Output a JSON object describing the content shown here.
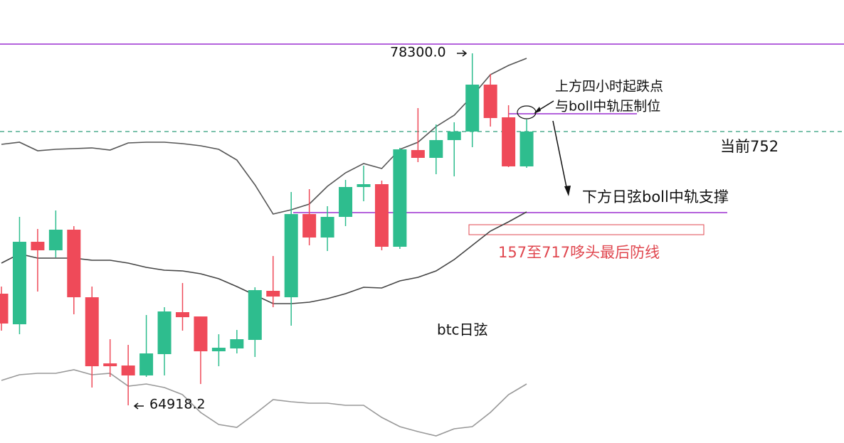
{
  "chart_data": {
    "type": "candlestick",
    "ylim": [
      63486,
      80328
    ],
    "candles": [
      {
        "open": 69163,
        "close": 68028,
        "high": 69433,
        "low": 67757
      },
      {
        "open": 68000,
        "close": 71136,
        "high": 72082,
        "low": 67621
      },
      {
        "open": 71136,
        "close": 70812,
        "high": 71623,
        "low": 69244
      },
      {
        "open": 70812,
        "close": 71596,
        "high": 72326,
        "low": 70541
      },
      {
        "open": 71596,
        "close": 69027,
        "high": 71731,
        "low": 68379
      },
      {
        "open": 69027,
        "close": 66405,
        "high": 69433,
        "low": 65594
      },
      {
        "open": 66513,
        "close": 66405,
        "high": 67432,
        "low": 66000
      },
      {
        "open": 66432,
        "close": 66054,
        "high": 67216,
        "low": 64918
      },
      {
        "open": 66054,
        "close": 66892,
        "high": 68352,
        "low": 66000
      },
      {
        "open": 66865,
        "close": 68487,
        "high": 68649,
        "low": 66054
      },
      {
        "open": 68460,
        "close": 68270,
        "high": 69568,
        "low": 67757
      },
      {
        "open": 68297,
        "close": 66973,
        "high": 68297,
        "low": 65729
      },
      {
        "open": 66973,
        "close": 67108,
        "high": 67621,
        "low": 66405
      },
      {
        "open": 67081,
        "close": 67432,
        "high": 67784,
        "low": 66892
      },
      {
        "open": 67406,
        "close": 69298,
        "high": 69406,
        "low": 66757
      },
      {
        "open": 69271,
        "close": 69054,
        "high": 70595,
        "low": 68649
      },
      {
        "open": 69027,
        "close": 72190,
        "high": 73028,
        "low": 67946
      },
      {
        "open": 72190,
        "close": 71298,
        "high": 73137,
        "low": 71001
      },
      {
        "open": 71298,
        "close": 72082,
        "high": 72488,
        "low": 70785
      },
      {
        "open": 72082,
        "close": 73218,
        "high": 73488,
        "low": 71731
      },
      {
        "open": 73218,
        "close": 73326,
        "high": 74029,
        "low": 72677
      },
      {
        "open": 73326,
        "close": 70947,
        "high": 73461,
        "low": 70812
      },
      {
        "open": 70947,
        "close": 74650,
        "high": 74705,
        "low": 70866
      },
      {
        "open": 74623,
        "close": 74326,
        "high": 76219,
        "low": 74164
      },
      {
        "open": 74326,
        "close": 75002,
        "high": 75597,
        "low": 73705
      },
      {
        "open": 75002,
        "close": 75326,
        "high": 75678,
        "low": 73623
      },
      {
        "open": 75326,
        "close": 77111,
        "high": 78300,
        "low": 74732
      },
      {
        "open": 77111,
        "close": 75840,
        "high": 77516,
        "low": 75516
      },
      {
        "open": 75867,
        "close": 74002,
        "high": 76327,
        "low": 73975
      },
      {
        "open": 74002,
        "close": 75326,
        "high": 75786,
        "low": 73948
      }
    ],
    "up_color": "#2ebd8e",
    "down_color": "#ef4a59",
    "bands": [
      {
        "color": "#555555",
        "values": [
          74840,
          74921,
          74597,
          74651,
          74678,
          74705,
          74624,
          74894,
          74921,
          74921,
          74867,
          74786,
          74651,
          74245,
          73299,
          72190,
          72353,
          72569,
          73245,
          73759,
          74110,
          73921,
          74651,
          74921,
          75516,
          75948,
          76678,
          77489,
          77841,
          78111
        ]
      },
      {
        "color": "#444444",
        "values": [
          70325,
          70676,
          70514,
          70514,
          70514,
          70434,
          70434,
          70325,
          70163,
          70055,
          70028,
          69920,
          69731,
          69433,
          69109,
          68784,
          68784,
          68838,
          68974,
          69163,
          69406,
          69379,
          69649,
          69785,
          70028,
          70460,
          71001,
          71542,
          71893,
          72271
        ]
      },
      {
        "color": "#999999",
        "values": [
          65865,
          66081,
          66135,
          66135,
          66270,
          66081,
          66135,
          65648,
          65730,
          65595,
          65324,
          64648,
          64188,
          64080,
          64594,
          65135,
          65054,
          65000,
          65000,
          64919,
          64919,
          64459,
          64108,
          63919,
          63756,
          64026,
          64108,
          64648,
          65324,
          65730
        ]
      }
    ],
    "levels": {
      "top": 78652,
      "current": 75327,
      "resistance": 76003,
      "support": 72245
    },
    "zone": [
      71785,
      71406
    ],
    "level_color": "#9b2fd0",
    "current_color": "#2e9e7a",
    "zone_color": "#e0474f",
    "annotations": {
      "high": "78300.0",
      "low": "64918.2",
      "resistance_1": "上方四小时起跌点",
      "resistance_2": "与boll中轨压制位",
      "current": "当前752",
      "support": "下方日弦boll中轨支撑",
      "zone": "157至717哆头最后防线",
      "title": "btc日弦"
    }
  }
}
